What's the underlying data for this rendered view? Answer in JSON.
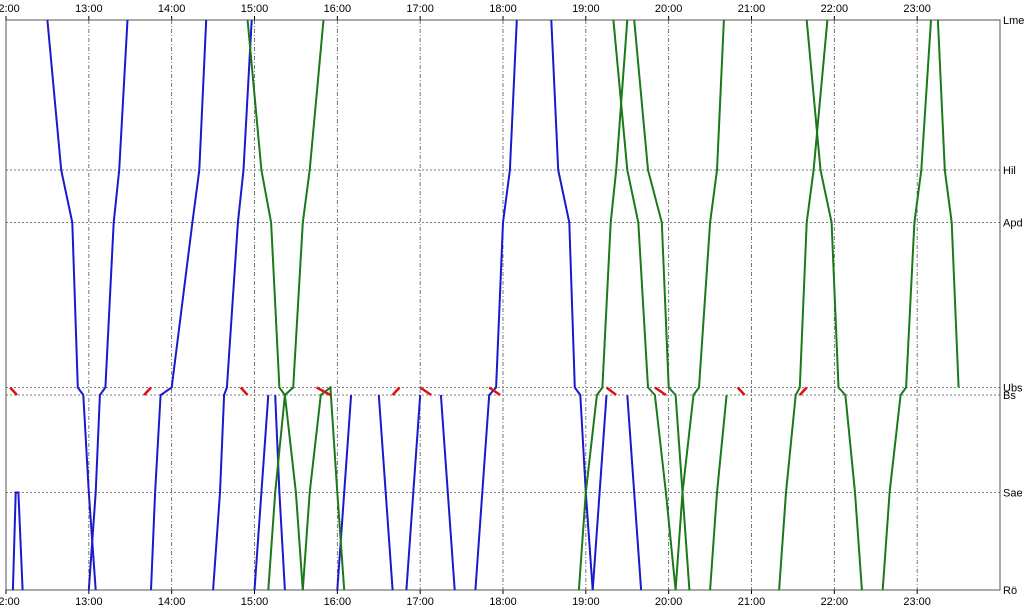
{
  "chart_data": {
    "type": "line",
    "title": "",
    "x_ticks": [
      "12:00",
      "13:00",
      "14:00",
      "15:00",
      "16:00",
      "17:00",
      "18:00",
      "19:00",
      "20:00",
      "21:00",
      "22:00",
      "23:00"
    ],
    "x_range": [
      "12:00",
      "24:00"
    ],
    "stations": [
      {
        "label": "Lme",
        "km": 0
      },
      {
        "label": "Hil",
        "km": 20
      },
      {
        "label": "Apd",
        "km": 27
      },
      {
        "label": "Ubs",
        "km": 49
      },
      {
        "label": "Bs",
        "km": 50
      },
      {
        "label": "Sae",
        "km": 63
      },
      {
        "label": "Rö",
        "km": 76
      }
    ],
    "grid": true,
    "colors": {
      "blue": "#1a1acc",
      "green": "#1a7a1a",
      "red": "#e01010",
      "grid": "#555555"
    },
    "series": [
      {
        "color": "blue",
        "trips": [
          [
            "12:05",
            76,
            "12:07",
            63,
            "12:09",
            63,
            "12:12",
            76
          ],
          [
            "12:30",
            0,
            "12:40",
            20,
            "12:48",
            27,
            "12:52",
            49,
            "12:56",
            50,
            "13:00",
            63,
            "13:05",
            76
          ],
          [
            "13:00",
            76,
            "13:05",
            63,
            "13:08",
            50,
            "13:12",
            49,
            "13:18",
            27,
            "13:22",
            20,
            "13:28",
            0
          ],
          [
            "13:45",
            76,
            "13:48",
            63,
            "13:52",
            50,
            "14:00",
            49,
            "14:15",
            27,
            "14:20",
            20,
            "14:25",
            0
          ],
          [
            "14:30",
            76,
            "14:35",
            63,
            "14:38",
            50,
            "14:40",
            49,
            "14:48",
            27,
            "14:52",
            20,
            "14:58",
            0
          ],
          [
            "15:00",
            76,
            "15:05",
            63,
            "15:10",
            50
          ],
          [
            "15:15",
            50,
            "15:18",
            63,
            "15:22",
            76
          ],
          [
            "16:00",
            76,
            "16:05",
            63,
            "16:10",
            50
          ],
          [
            "16:30",
            50,
            "16:35",
            63,
            "16:40",
            76
          ],
          [
            "16:50",
            76,
            "16:55",
            63,
            "17:00",
            50
          ],
          [
            "17:15",
            50,
            "17:20",
            63,
            "17:25",
            76
          ],
          [
            "17:40",
            76,
            "17:45",
            63,
            "17:50",
            50,
            "17:55",
            49,
            "18:00",
            27,
            "18:05",
            20,
            "18:10",
            0
          ],
          [
            "18:35",
            0,
            "18:40",
            20,
            "18:48",
            27,
            "18:52",
            49,
            "18:56",
            50,
            "19:00",
            63,
            "19:05",
            76
          ],
          [
            "19:05",
            76,
            "19:10",
            63,
            "19:15",
            50
          ],
          [
            "19:30",
            50,
            "19:35",
            63,
            "19:40",
            76
          ]
        ]
      },
      {
        "color": "green",
        "trips": [
          [
            "14:55",
            0,
            "15:05",
            20,
            "15:12",
            27,
            "15:18",
            49,
            "15:22",
            50,
            "15:30",
            63,
            "15:35",
            76
          ],
          [
            "15:10",
            76,
            "15:15",
            63,
            "15:22",
            50,
            "15:28",
            49,
            "15:35",
            27,
            "15:40",
            20,
            "15:50",
            0
          ],
          [
            "15:35",
            76,
            "15:40",
            63,
            "15:48",
            50,
            "15:55",
            49,
            "16:00",
            63,
            "16:05",
            76
          ],
          [
            "18:55",
            76,
            "19:00",
            63,
            "19:08",
            50,
            "19:12",
            49,
            "19:18",
            27,
            "19:22",
            20,
            "19:30",
            0
          ],
          [
            "19:20",
            0,
            "19:30",
            20,
            "19:38",
            27,
            "19:45",
            49,
            "19:50",
            50,
            "19:58",
            63,
            "20:05",
            76
          ],
          [
            "19:35",
            0,
            "19:45",
            20,
            "19:55",
            27,
            "20:00",
            49,
            "20:05",
            50,
            "20:10",
            63,
            "20:15",
            76
          ],
          [
            "20:05",
            76,
            "20:10",
            63,
            "20:18",
            50,
            "20:22",
            49,
            "20:30",
            27,
            "20:35",
            20,
            "20:40",
            0
          ],
          [
            "20:30",
            76,
            "20:35",
            63,
            "20:42",
            50
          ],
          [
            "21:20",
            76,
            "21:25",
            63,
            "21:32",
            50,
            "21:35",
            49,
            "21:40",
            27,
            "21:45",
            20,
            "21:55",
            0
          ],
          [
            "21:40",
            0,
            "21:50",
            20,
            "21:58",
            27,
            "22:03",
            49,
            "22:08",
            50,
            "22:15",
            63,
            "22:20",
            76
          ],
          [
            "22:35",
            76,
            "22:40",
            63,
            "22:48",
            50,
            "22:52",
            49,
            "22:58",
            27,
            "23:03",
            20,
            "23:10",
            0
          ],
          [
            "23:15",
            0,
            "23:20",
            20,
            "23:25",
            27,
            "23:30",
            49
          ]
        ]
      },
      {
        "color": "red",
        "trips": [
          [
            "12:03",
            49,
            "12:08",
            50
          ],
          [
            "13:40",
            50,
            "13:45",
            49
          ],
          [
            "14:50",
            49,
            "14:55",
            50
          ],
          [
            "15:45",
            49,
            "15:55",
            50
          ],
          [
            "16:40",
            50,
            "16:45",
            49
          ],
          [
            "17:00",
            49,
            "17:08",
            50
          ],
          [
            "17:50",
            49,
            "17:58",
            50
          ],
          [
            "19:15",
            49,
            "19:22",
            50
          ],
          [
            "19:50",
            49,
            "19:58",
            50
          ],
          [
            "20:50",
            49,
            "20:55",
            50
          ],
          [
            "21:35",
            50,
            "21:40",
            49
          ]
        ]
      }
    ]
  }
}
